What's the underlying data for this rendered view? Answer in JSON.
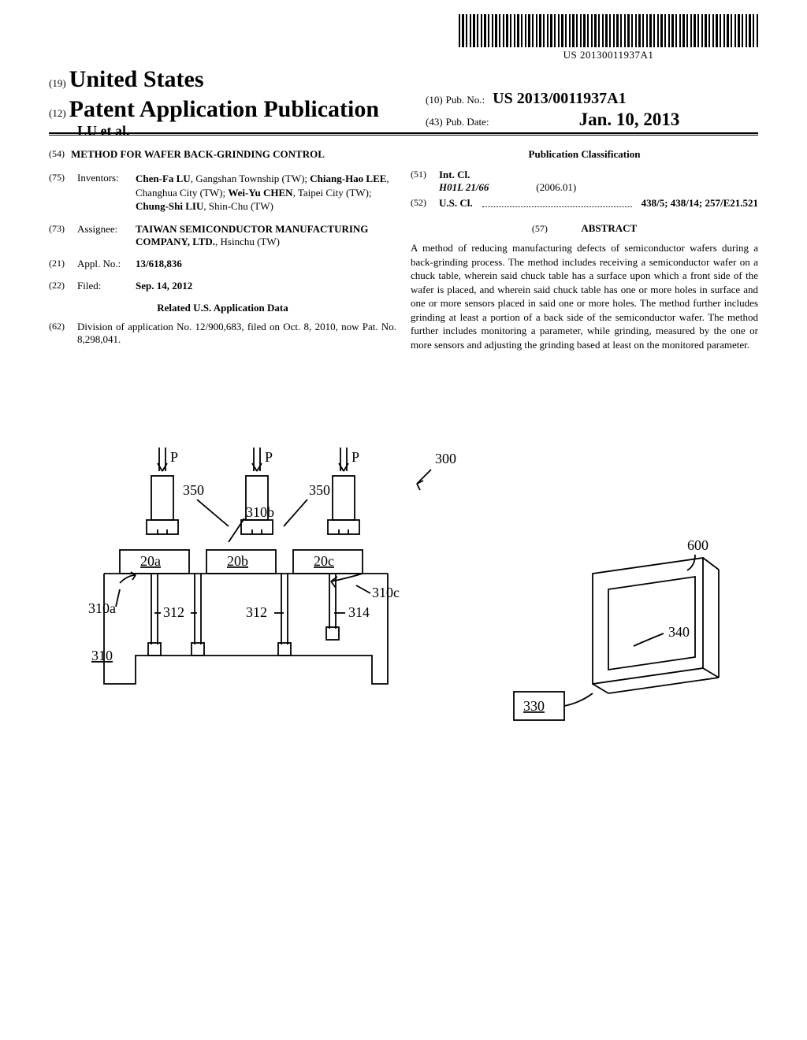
{
  "barcode_text": "US 20130011937A1",
  "header": {
    "code19": "(19)",
    "country": "United States",
    "code12": "(12)",
    "doc_type": "Patent Application Publication",
    "authors_line": "LU et al.",
    "code10": "(10)",
    "pubno_label": "Pub. No.:",
    "pubno": "US 2013/0011937A1",
    "code43": "(43)",
    "pubdate_label": "Pub. Date:",
    "pubdate": "Jan. 10, 2013"
  },
  "left": {
    "code54": "(54)",
    "title": "METHOD FOR WAFER BACK-GRINDING CONTROL",
    "code75": "(75)",
    "inventors_label": "Inventors:",
    "inventors": "<b>Chen-Fa LU</b>, Gangshan Township (TW); <b>Chiang-Hao LEE</b>, Changhua City (TW); <b>Wei-Yu CHEN</b>, Taipei City (TW); <b>Chung-Shi LIU</b>, Shin-Chu (TW)",
    "code73": "(73)",
    "assignee_label": "Assignee:",
    "assignee": "<b>TAIWAN SEMICONDUCTOR MANUFACTURING COMPANY, LTD.</b>, Hsinchu (TW)",
    "code21": "(21)",
    "applno_label": "Appl. No.:",
    "applno": "13/618,836",
    "code22": "(22)",
    "filed_label": "Filed:",
    "filed": "Sep. 14, 2012",
    "related_hdr": "Related U.S. Application Data",
    "code62": "(62)",
    "division": "Division of application No. 12/900,683, filed on Oct. 8, 2010, now Pat. No. 8,298,041."
  },
  "right": {
    "pubclass_hdr": "Publication Classification",
    "code51": "(51)",
    "intcl_label": "Int. Cl.",
    "intcl_code": "H01L 21/66",
    "intcl_year": "(2006.01)",
    "code52": "(52)",
    "uscl_label": "U.S. Cl.",
    "uscl_vals": "438/5; 438/14; 257/E21.521",
    "code57": "(57)",
    "abstract_label": "ABSTRACT",
    "abstract": "A method of reducing manufacturing defects of semiconductor wafers during a back-grinding process. The method includes receiving a semiconductor wafer on a chuck table, wherein said chuck table has a surface upon which a front side of the wafer is placed, and wherein said chuck table has one or more holes in surface and one or more sensors placed in said one or more holes. The method further includes grinding at least a portion of a back side of the semiconductor wafer. The method further includes monitoring a parameter, while grinding, measured by the one or more sensors and adjusting the grinding based at least on the monitored parameter."
  },
  "figure": {
    "labels": {
      "p": "P",
      "ref300": "300",
      "ref350a": "350",
      "ref350b": "350",
      "ref310b": "310b",
      "ref20a": "20a",
      "ref20b": "20b",
      "ref20c": "20c",
      "ref310c": "310c",
      "ref310a": "310a",
      "ref312a": "312",
      "ref312b": "312",
      "ref314": "314",
      "ref310": "310",
      "ref600": "600",
      "ref340": "340",
      "ref330": "330"
    },
    "stroke": "#000000",
    "stroke_width": 1.5,
    "fill": "#ffffff"
  }
}
